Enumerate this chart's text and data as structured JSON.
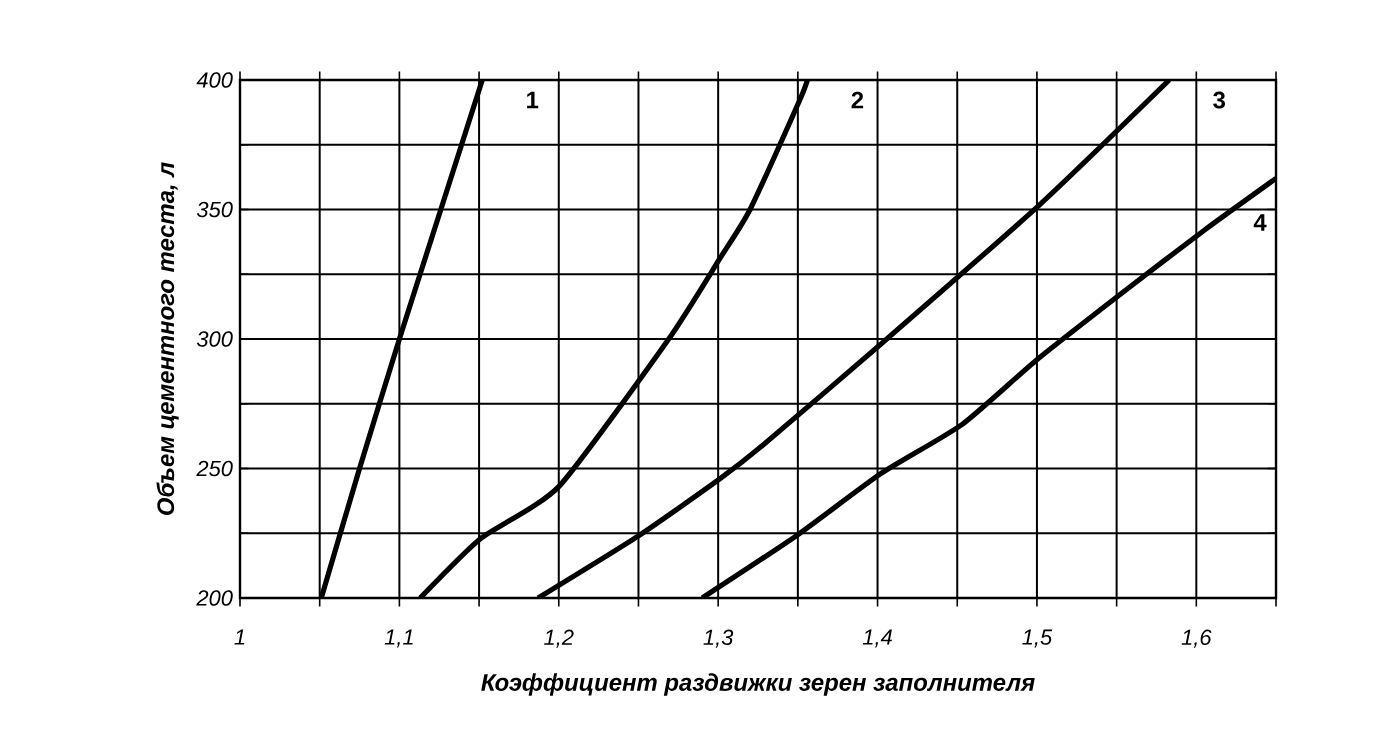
{
  "chart_data": {
    "type": "line",
    "xlabel": "Коэффициент раздвижки зерен заполнителя",
    "ylabel": "Объем цементного теста, л",
    "xlim": [
      1,
      1.65
    ],
    "ylim": [
      200,
      400
    ],
    "xticks": [
      1,
      {
        "value": 1.05,
        "label": null
      },
      {
        "value": 1.1,
        "label": "1,1"
      },
      {
        "value": 1.15,
        "label": null
      },
      {
        "value": 1.2,
        "label": "1,2"
      },
      {
        "value": 1.25,
        "label": null
      },
      {
        "value": 1.3,
        "label": "1,3"
      },
      {
        "value": 1.35,
        "label": null
      },
      {
        "value": 1.4,
        "label": "1,4"
      },
      {
        "value": 1.45,
        "label": null
      },
      {
        "value": 1.5,
        "label": "1,5"
      },
      {
        "value": 1.55,
        "label": null
      },
      {
        "value": 1.6,
        "label": "1,6"
      },
      {
        "value": 1.65,
        "label": null
      }
    ],
    "yticks": [
      200,
      {
        "value": 225,
        "label": null
      },
      250,
      {
        "value": 275,
        "label": null
      },
      300,
      {
        "value": 325,
        "label": null
      },
      350,
      {
        "value": 375,
        "label": null
      },
      400
    ],
    "grid": true,
    "marker": "none",
    "line_style": "solid",
    "legend": "top right",
    "series": [
      {
        "name": "1",
        "color": "#000000",
        "x": [
          1.051,
          1.075,
          1.1,
          1.126,
          1.152
        ],
        "values": [
          200,
          250,
          300,
          350,
          400
        ]
      },
      {
        "name": "2",
        "color": "#000000",
        "x": [
          1.113,
          1.151,
          1.2,
          1.269,
          1.301,
          1.32,
          1.351,
          1.356
        ],
        "values": [
          200,
          223,
          243,
          300,
          331,
          350,
          392,
          400
        ]
      },
      {
        "name": "3",
        "color": "#000000",
        "x": [
          1.187,
          1.25,
          1.301,
          1.328,
          1.402,
          1.502,
          1.583
        ],
        "values": [
          200,
          224,
          246,
          259,
          298,
          352,
          400
        ]
      },
      {
        "name": "4",
        "color": "#000000",
        "x": [
          1.29,
          1.349,
          1.402,
          1.453,
          1.5,
          1.556,
          1.605,
          1.65
        ],
        "values": [
          200,
          224,
          248,
          267,
          292,
          319,
          342,
          362
        ]
      }
    ]
  }
}
